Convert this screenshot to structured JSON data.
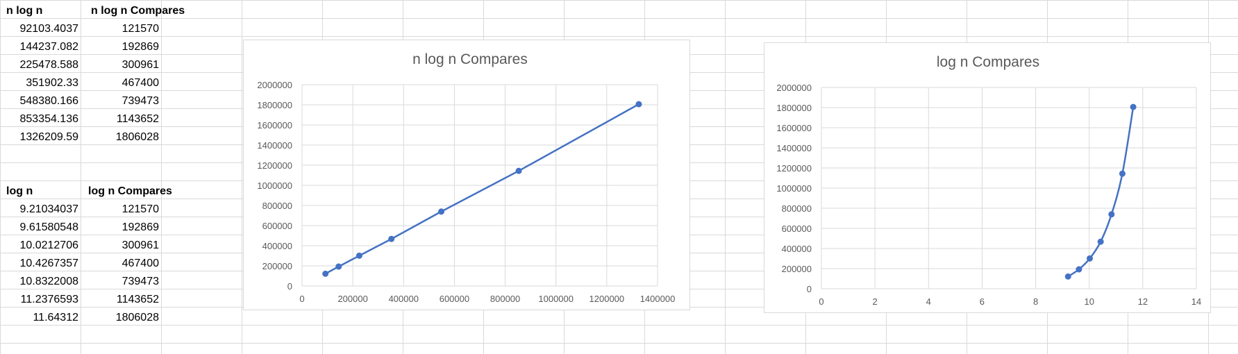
{
  "table1": {
    "headers": [
      "n log n",
      "n log n  Compares"
    ],
    "rows": [
      [
        "92103.4037",
        "121570"
      ],
      [
        "144237.082",
        "192869"
      ],
      [
        "225478.588",
        "300961"
      ],
      [
        "351902.33",
        "467400"
      ],
      [
        "548380.166",
        "739473"
      ],
      [
        "853354.136",
        "1143652"
      ],
      [
        "1326209.59",
        "1806028"
      ]
    ]
  },
  "table2": {
    "headers": [
      "log n",
      "log n  Compares"
    ],
    "rows": [
      [
        "9.21034037",
        "121570"
      ],
      [
        "9.61580548",
        "192869"
      ],
      [
        "10.0212706",
        "300961"
      ],
      [
        "10.4267357",
        "467400"
      ],
      [
        "10.8322008",
        "739473"
      ],
      [
        "11.2376593",
        "1143652"
      ],
      [
        "11.64312",
        "1806028"
      ]
    ]
  },
  "colors": {
    "series": "#4472c4",
    "gridline": "#d9d9d9",
    "text": "#595959"
  },
  "chart_data": [
    {
      "type": "scatter",
      "title": "n log n  Compares",
      "xlabel": "",
      "ylabel": "",
      "lines": true,
      "markers": true,
      "grid": true,
      "legend": "none",
      "xlim": [
        0,
        1400000
      ],
      "ylim": [
        0,
        2000000
      ],
      "xticks": [
        "0",
        "200000",
        "400000",
        "600000",
        "800000",
        "1000000",
        "1200000",
        "1400000"
      ],
      "yticks": [
        "0",
        "200000",
        "400000",
        "600000",
        "800000",
        "1000000",
        "1200000",
        "1400000",
        "1600000",
        "1800000",
        "2000000"
      ],
      "x": [
        92103.4037,
        144237.082,
        225478.588,
        351902.33,
        548380.166,
        853354.136,
        1326209.59
      ],
      "y": [
        121570,
        192869,
        300961,
        467400,
        739473,
        1143652,
        1806028
      ]
    },
    {
      "type": "scatter",
      "title": "log n  Compares",
      "xlabel": "",
      "ylabel": "",
      "lines": true,
      "smooth": true,
      "markers": true,
      "grid": true,
      "legend": "none",
      "xlim": [
        0,
        14
      ],
      "ylim": [
        0,
        2000000
      ],
      "xticks": [
        "0",
        "2",
        "4",
        "6",
        "8",
        "10",
        "12",
        "14"
      ],
      "yticks": [
        "0",
        "200000",
        "400000",
        "600000",
        "800000",
        "1000000",
        "1200000",
        "1400000",
        "1600000",
        "1800000",
        "2000000"
      ],
      "x": [
        9.21034037,
        9.61580548,
        10.0212706,
        10.4267357,
        10.8322008,
        11.2376593,
        11.64312
      ],
      "y": [
        121570,
        192869,
        300961,
        467400,
        739473,
        1143652,
        1806028
      ]
    }
  ]
}
